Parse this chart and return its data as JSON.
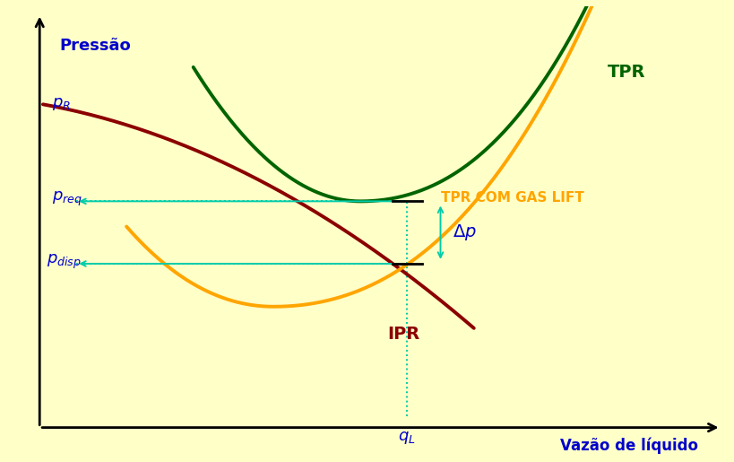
{
  "background_color": "#FFFFC8",
  "ipr_color": "#8B0000",
  "tpr_color": "#006400",
  "tpr_gl_color": "#FFA500",
  "annotation_color": "#0000CC",
  "arrow_color": "#00CCAA",
  "axis_color": "#000000",
  "xmin": 0.0,
  "xmax": 10.0,
  "ymin": 0.0,
  "ymax": 10.0,
  "qL_x": 5.5,
  "preq_y": 5.5,
  "pdisp_y": 3.9,
  "pR_y": 8.0,
  "pressao_label": "Pressão",
  "vazao_label": "Vazão de líquido",
  "tpr_label": "TPR",
  "tpr_gl_label": "TPR COM GAS LIFT",
  "ipr_label": "IPR"
}
